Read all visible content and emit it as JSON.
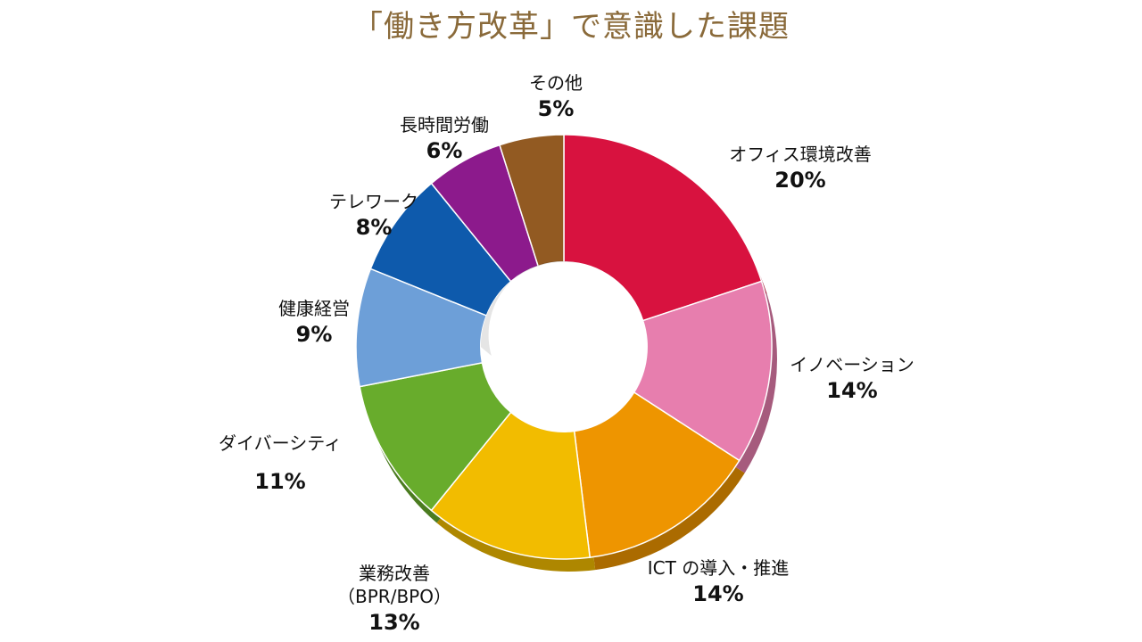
{
  "chart_data": {
    "type": "pie",
    "title": "「働き方改革」で意識した課題",
    "unit": "%",
    "slices": [
      {
        "label": "オフィス環境改善",
        "value": 20,
        "display": "20%",
        "color": "#d8123f"
      },
      {
        "label": "イノベーション",
        "value": 14,
        "display": "14%",
        "color": "#e77eae"
      },
      {
        "label": "ICT の導入・推進",
        "value": 14,
        "display": "14%",
        "color": "#ee9500"
      },
      {
        "label": "業務改善",
        "sublabel": "（BPR/BPO）",
        "value": 13,
        "display": "13%",
        "color": "#f2bc00"
      },
      {
        "label": "ダイバーシティ",
        "value": 11,
        "display": "11%",
        "color": "#68ac2c"
      },
      {
        "label": "健康経営",
        "value": 9,
        "display": "9%",
        "color": "#6d9fd8"
      },
      {
        "label": "テレワーク",
        "value": 8,
        "display": "8%",
        "color": "#0e5aac"
      },
      {
        "label": "長時間労働",
        "value": 6,
        "display": "6%",
        "color": "#8c1a8c"
      },
      {
        "label": "その他",
        "value": 5,
        "display": "5%",
        "color": "#925a22"
      }
    ],
    "legend": "none"
  }
}
